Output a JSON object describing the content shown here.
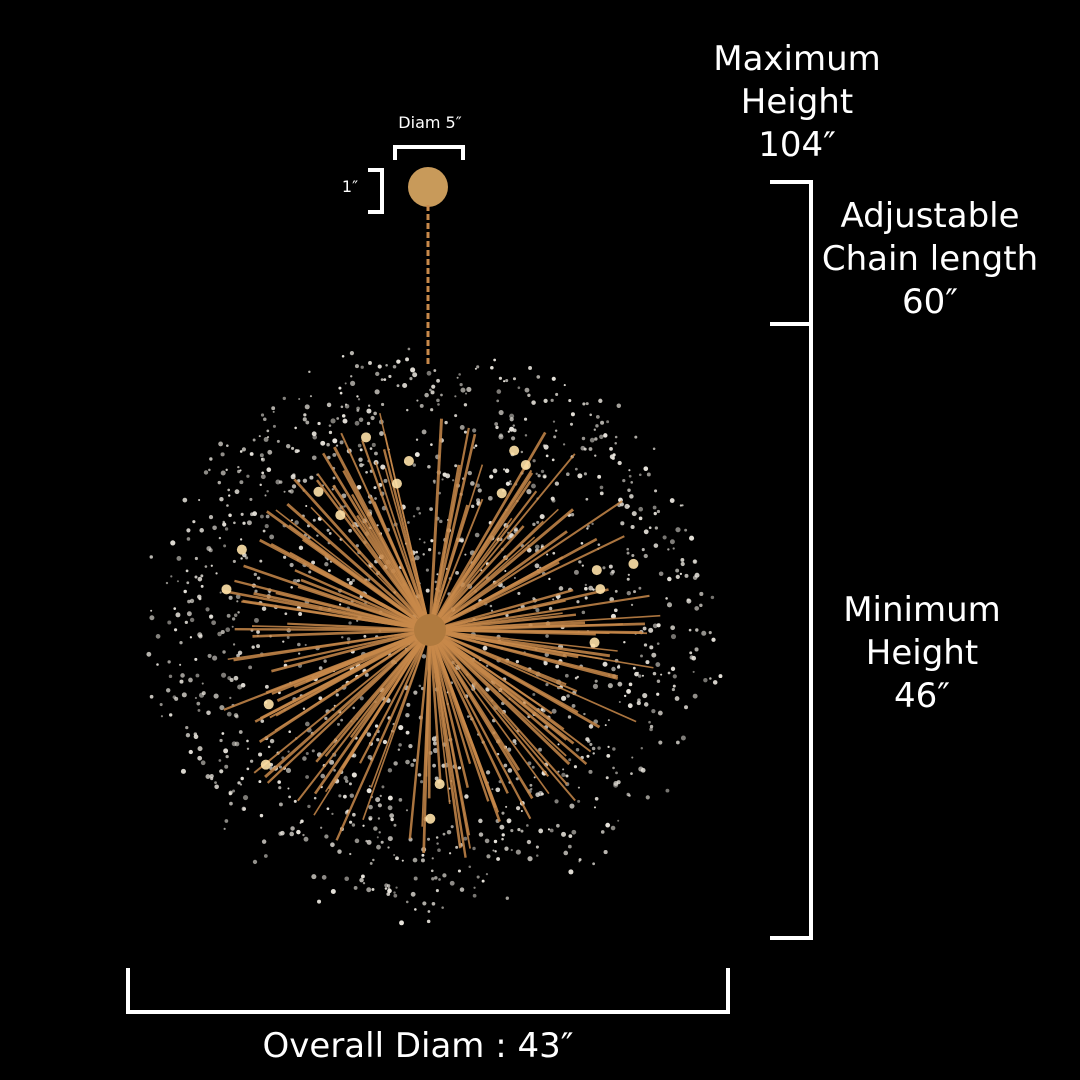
{
  "labels": {
    "canopy_diameter": "Diam 5″",
    "canopy_height": "1″",
    "maximum_height": [
      "Maximum",
      "Height",
      "104″"
    ],
    "chain_length": [
      "Adjustable",
      "Chain length",
      "60″"
    ],
    "minimum_height": [
      "Minimum",
      "Height",
      "46″"
    ],
    "overall_diameter": "Overall Diam : 43″"
  },
  "colors": {
    "background": "#000000",
    "annotation": "#ffffff",
    "brass": "#c8894a",
    "crystal": "#e8e4dc"
  }
}
